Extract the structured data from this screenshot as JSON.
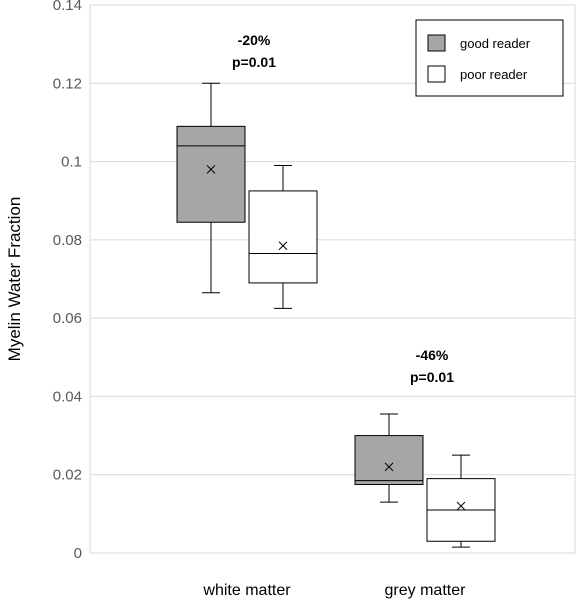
{
  "chart_data": {
    "type": "box",
    "title": "",
    "xlabel": "",
    "ylabel": "Myelin Water Fraction",
    "ylim": [
      0,
      0.14
    ],
    "yticks": [
      "0",
      "0.02",
      "0.04",
      "0.06",
      "0.08",
      "0.1",
      "0.12",
      "0.14"
    ],
    "grid": true,
    "legend_position": "top-right",
    "categories": [
      "white matter",
      "grey matter"
    ],
    "series": [
      {
        "name": "good reader",
        "color": "#a6a6a6",
        "boxes": [
          {
            "category": "white matter",
            "min": 0.0665,
            "q1": 0.0845,
            "median": 0.104,
            "q3": 0.109,
            "max": 0.12,
            "mean": 0.098
          },
          {
            "category": "grey matter",
            "min": 0.013,
            "q1": 0.0175,
            "median": 0.0185,
            "q3": 0.03,
            "max": 0.0355,
            "mean": 0.022
          }
        ]
      },
      {
        "name": "poor reader",
        "color": "#ffffff",
        "boxes": [
          {
            "category": "white matter",
            "min": 0.0625,
            "q1": 0.069,
            "median": 0.0765,
            "q3": 0.0925,
            "max": 0.099,
            "mean": 0.0785
          },
          {
            "category": "grey matter",
            "min": 0.0015,
            "q1": 0.003,
            "median": 0.011,
            "q3": 0.019,
            "max": 0.025,
            "mean": 0.012
          }
        ]
      }
    ],
    "annotations": [
      {
        "category": "white matter",
        "lines": [
          "-20%",
          "p=0.01"
        ]
      },
      {
        "category": "grey matter",
        "lines": [
          "-46%",
          "p=0.01"
        ]
      }
    ]
  }
}
